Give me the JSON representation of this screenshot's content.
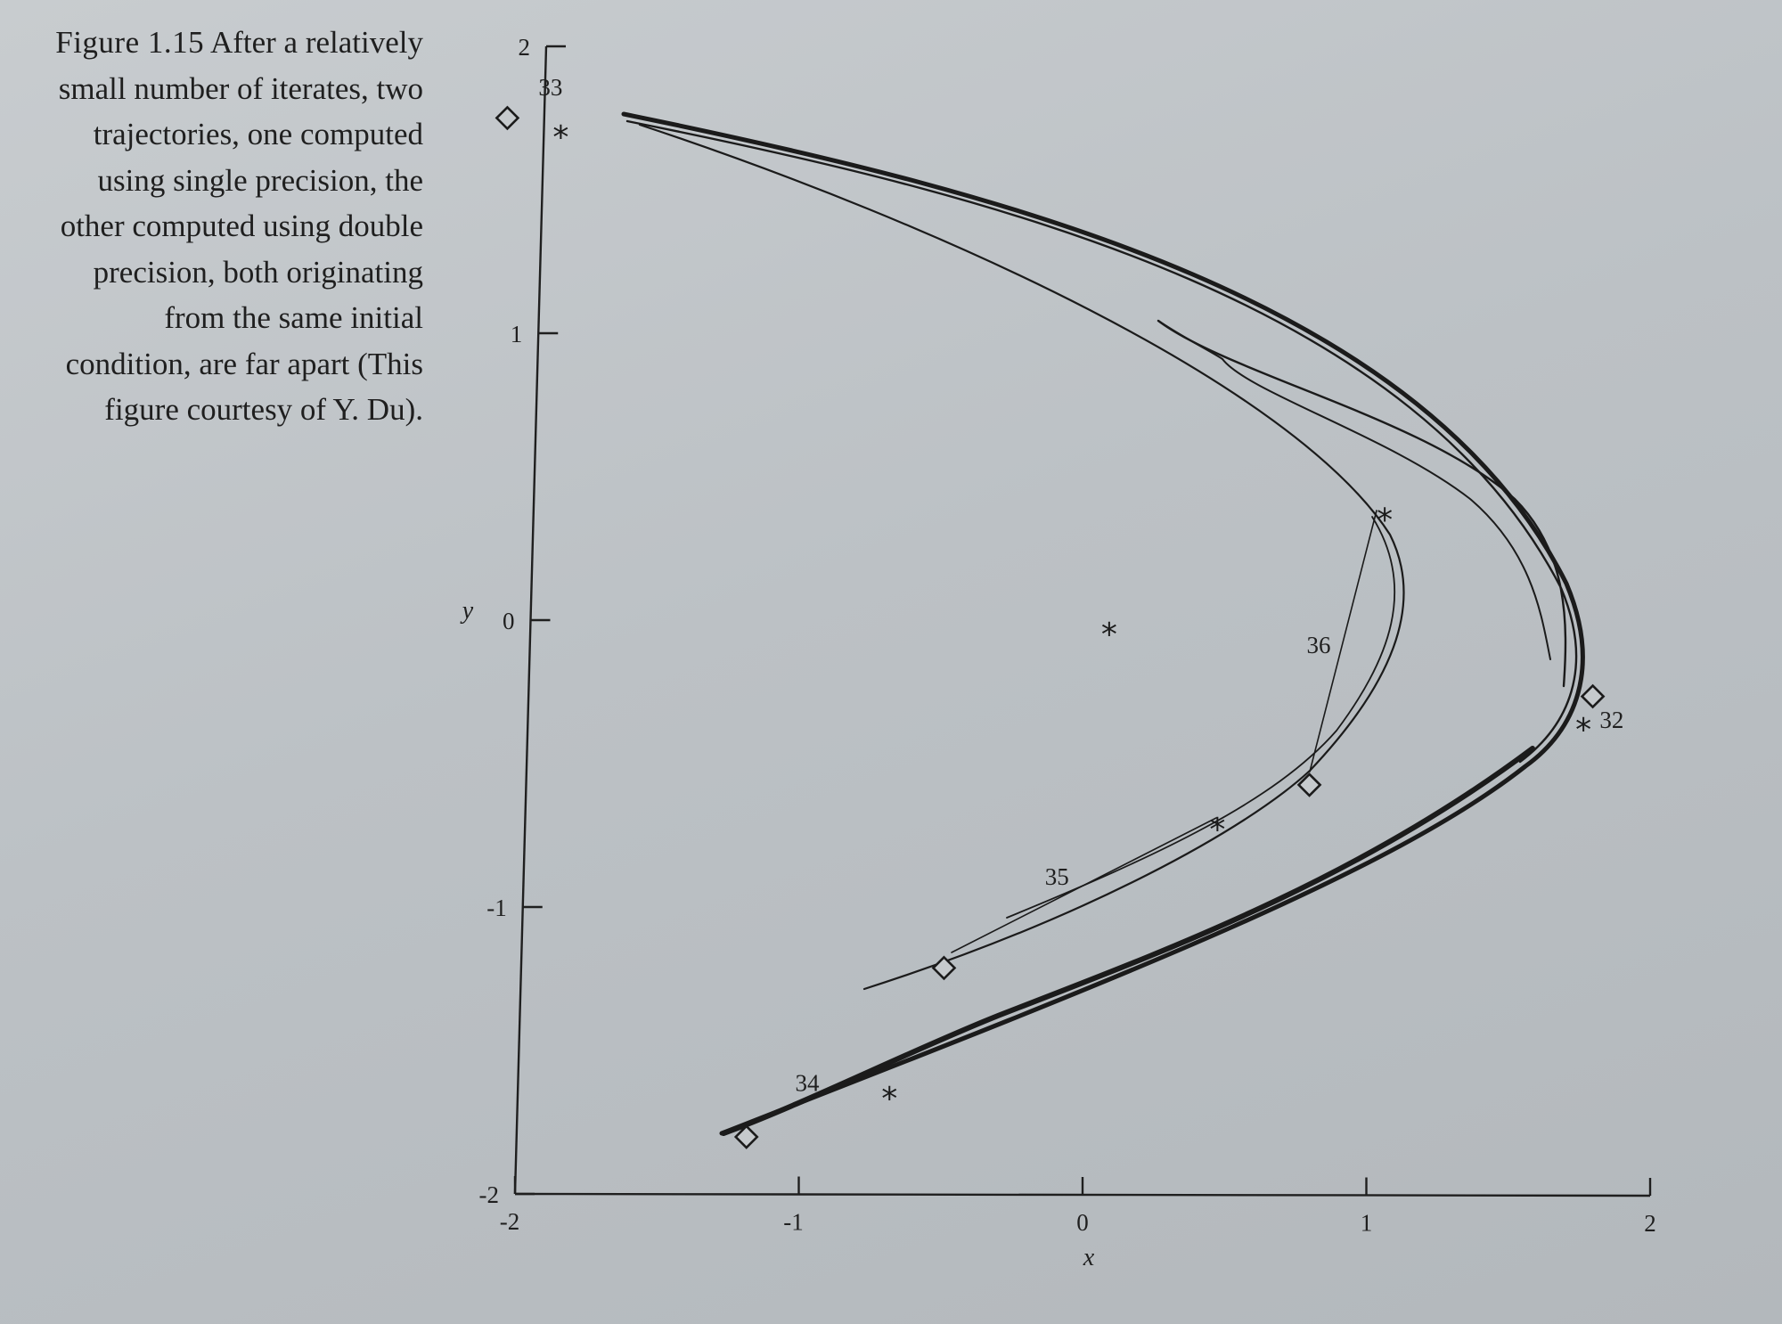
{
  "caption": {
    "figure_number": "Figure 1.15",
    "text": "After a relatively small number of iterates, two trajectories, one computed using single precision, the other computed using double precision, both originating from the same initial condition, are far apart (This figure courtesy of Y. Du)."
  },
  "chart_data": {
    "type": "line",
    "xlabel": "x",
    "ylabel": "y",
    "xlim": [
      -2,
      2
    ],
    "ylim": [
      -2,
      2
    ],
    "x_ticks": [
      "-2",
      "-1",
      "0",
      "1",
      "2"
    ],
    "y_ticks": [
      "-2",
      "-1",
      "0",
      "1",
      "2"
    ],
    "grid": false,
    "series": [
      {
        "marker": "diamond",
        "points": [
          {
            "x": -2.13,
            "y": 1.75
          },
          {
            "x": 1.75,
            "y": -0.26
          },
          {
            "x": 0.76,
            "y": -0.57
          },
          {
            "x": -0.51,
            "y": -1.21
          },
          {
            "x": -1.19,
            "y": -1.8
          }
        ]
      },
      {
        "marker": "asterisk",
        "points": [
          {
            "x": -1.94,
            "y": 1.69
          },
          {
            "x": 0.04,
            "y": -0.04
          },
          {
            "x": 1.72,
            "y": -0.37
          },
          {
            "x": 1.0,
            "y": 0.36
          },
          {
            "x": 0.44,
            "y": -0.72
          },
          {
            "x": -0.69,
            "y": -1.66
          }
        ]
      }
    ],
    "annotations": [
      {
        "label": "32",
        "x": 1.82,
        "y": -0.37
      },
      {
        "label": "33",
        "x": -1.98,
        "y": 1.83
      },
      {
        "label": "34",
        "x": -0.98,
        "y": -1.64
      },
      {
        "label": "35",
        "x": -0.12,
        "y": -0.92
      },
      {
        "label": "36",
        "x": 0.78,
        "y": -0.11
      }
    ]
  }
}
